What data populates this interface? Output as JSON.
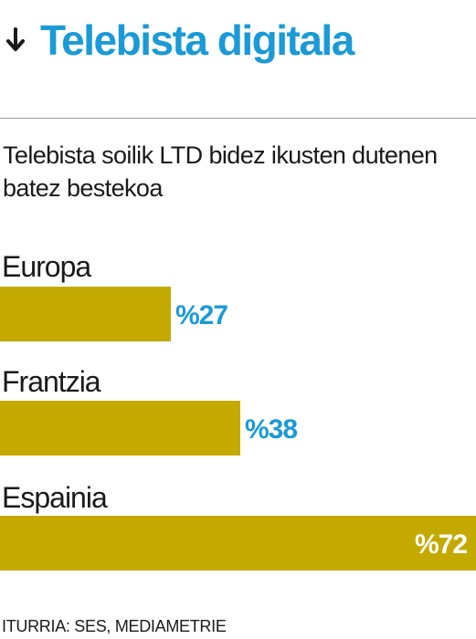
{
  "header": {
    "title": "Telebista digitala",
    "icon": "arrow-down-icon",
    "title_color": "#1a9ad6"
  },
  "subtitle": "Telebista soilik LTD bidez ikusten dutenen batez bestekoa",
  "source": "ITURRIA: SES, MEDIAMETRIE",
  "colors": {
    "bar": "#c4aa00",
    "value_label_outside": "#1a9ad6",
    "value_label_inside": "#ffffff"
  },
  "chart_data": {
    "type": "bar",
    "orientation": "horizontal",
    "title": "Telebista digitala",
    "subtitle": "Telebista soilik LTD bidez ikusten dutenen batez bestekoa",
    "categories": [
      "Europa",
      "Frantzia",
      "Espainia"
    ],
    "values": [
      27,
      38,
      72
    ],
    "value_labels": [
      "%27",
      "%38",
      "%72"
    ],
    "unit": "%",
    "xlim": [
      0,
      72
    ],
    "grid": false,
    "legend": "none"
  }
}
